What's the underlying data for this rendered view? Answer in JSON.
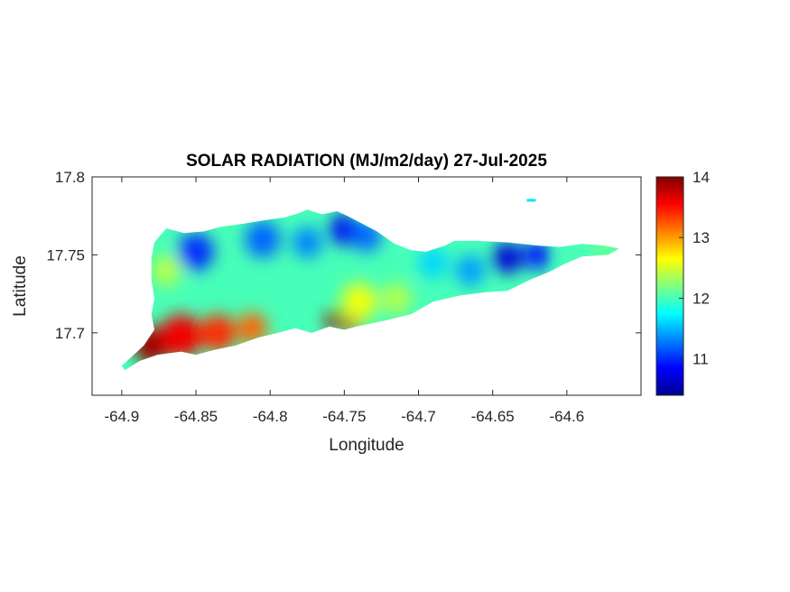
{
  "chart_data": {
    "type": "heatmap",
    "title": "SOLAR RADIATION (MJ/m2/day) 27-Jul-2025",
    "xlabel": "Longitude",
    "ylabel": "Latitude",
    "xlim": [
      -64.92,
      -64.55
    ],
    "ylim": [
      17.66,
      17.8
    ],
    "xticks": [
      -64.9,
      -64.85,
      -64.8,
      -64.75,
      -64.7,
      -64.65,
      -64.6
    ],
    "xtick_labels": [
      "-64.9",
      "-64.85",
      "-64.8",
      "-64.75",
      "-64.7",
      "-64.65",
      "-64.6"
    ],
    "yticks": [
      17.7,
      17.75,
      17.8
    ],
    "ytick_labels": [
      "17.7",
      "17.75",
      "17.8"
    ],
    "colormap": "jet",
    "clim": [
      10.4,
      14.0
    ],
    "colorbar_ticks": [
      11,
      12,
      13,
      14
    ],
    "colorbar_tick_labels": [
      "11",
      "12",
      "13",
      "14"
    ],
    "grid": false,
    "island_outline": [
      [
        -64.9,
        17.679
      ],
      [
        -64.885,
        17.692
      ],
      [
        -64.878,
        17.702
      ],
      [
        -64.88,
        17.712
      ],
      [
        -64.878,
        17.722
      ],
      [
        -64.88,
        17.734
      ],
      [
        -64.88,
        17.748
      ],
      [
        -64.878,
        17.758
      ],
      [
        -64.87,
        17.767
      ],
      [
        -64.858,
        17.764
      ],
      [
        -64.845,
        17.765
      ],
      [
        -64.833,
        17.768
      ],
      [
        -64.818,
        17.77
      ],
      [
        -64.805,
        17.772
      ],
      [
        -64.79,
        17.774
      ],
      [
        -64.78,
        17.777
      ],
      [
        -64.775,
        17.779
      ],
      [
        -64.765,
        17.776
      ],
      [
        -64.755,
        17.778
      ],
      [
        -64.748,
        17.775
      ],
      [
        -64.74,
        17.771
      ],
      [
        -64.728,
        17.765
      ],
      [
        -64.716,
        17.757
      ],
      [
        -64.705,
        17.753
      ],
      [
        -64.695,
        17.752
      ],
      [
        -64.682,
        17.756
      ],
      [
        -64.676,
        17.759
      ],
      [
        -64.66,
        17.759
      ],
      [
        -64.64,
        17.758
      ],
      [
        -64.62,
        17.756
      ],
      [
        -64.605,
        17.755
      ],
      [
        -64.59,
        17.757
      ],
      [
        -64.575,
        17.756
      ],
      [
        -64.565,
        17.754
      ],
      [
        -64.572,
        17.75
      ],
      [
        -64.59,
        17.749
      ],
      [
        -64.602,
        17.744
      ],
      [
        -64.612,
        17.739
      ],
      [
        -64.625,
        17.734
      ],
      [
        -64.64,
        17.727
      ],
      [
        -64.655,
        17.726
      ],
      [
        -64.672,
        17.724
      ],
      [
        -64.69,
        17.72
      ],
      [
        -64.705,
        17.712
      ],
      [
        -64.722,
        17.708
      ],
      [
        -64.742,
        17.704
      ],
      [
        -64.75,
        17.702
      ],
      [
        -64.76,
        17.704
      ],
      [
        -64.772,
        17.7
      ],
      [
        -64.783,
        17.703
      ],
      [
        -64.795,
        17.7
      ],
      [
        -64.808,
        17.697
      ],
      [
        -64.823,
        17.692
      ],
      [
        -64.838,
        17.689
      ],
      [
        -64.85,
        17.686
      ],
      [
        -64.86,
        17.688
      ],
      [
        -64.876,
        17.686
      ],
      [
        -64.888,
        17.682
      ],
      [
        -64.898,
        17.676
      ]
    ],
    "islet": [
      [
        -64.627,
        17.785
      ],
      [
        -64.621,
        17.785
      ]
    ],
    "value_regions": [
      {
        "lon": -64.88,
        "lat": 17.692,
        "value": 13.9,
        "radius_deg": 0.012
      },
      {
        "lon": -64.86,
        "lat": 17.698,
        "value": 13.6,
        "radius_deg": 0.014
      },
      {
        "lon": -64.835,
        "lat": 17.7,
        "value": 13.4,
        "radius_deg": 0.012
      },
      {
        "lon": -64.812,
        "lat": 17.703,
        "value": 13.2,
        "radius_deg": 0.01
      },
      {
        "lon": -64.757,
        "lat": 17.708,
        "value": 13.9,
        "radius_deg": 0.006
      },
      {
        "lon": -64.745,
        "lat": 17.705,
        "value": 13.6,
        "radius_deg": 0.005
      },
      {
        "lon": -64.87,
        "lat": 17.74,
        "value": 12.4,
        "radius_deg": 0.01
      },
      {
        "lon": -64.74,
        "lat": 17.72,
        "value": 12.6,
        "radius_deg": 0.012
      },
      {
        "lon": -64.715,
        "lat": 17.722,
        "value": 12.4,
        "radius_deg": 0.01
      },
      {
        "lon": -64.85,
        "lat": 17.752,
        "value": 11.0,
        "radius_deg": 0.012
      },
      {
        "lon": -64.805,
        "lat": 17.76,
        "value": 11.2,
        "radius_deg": 0.012
      },
      {
        "lon": -64.775,
        "lat": 17.758,
        "value": 11.3,
        "radius_deg": 0.01
      },
      {
        "lon": -64.75,
        "lat": 17.766,
        "value": 10.8,
        "radius_deg": 0.01
      },
      {
        "lon": -64.735,
        "lat": 17.762,
        "value": 11.2,
        "radius_deg": 0.01
      },
      {
        "lon": -64.69,
        "lat": 17.745,
        "value": 11.6,
        "radius_deg": 0.01
      },
      {
        "lon": -64.665,
        "lat": 17.74,
        "value": 11.4,
        "radius_deg": 0.01
      },
      {
        "lon": -64.64,
        "lat": 17.748,
        "value": 10.7,
        "radius_deg": 0.01
      },
      {
        "lon": -64.62,
        "lat": 17.75,
        "value": 10.9,
        "radius_deg": 0.009
      },
      {
        "lon": -64.595,
        "lat": 17.75,
        "value": 12.0,
        "radius_deg": 0.008
      },
      {
        "lon": -64.575,
        "lat": 17.754,
        "value": 12.2,
        "radius_deg": 0.006
      }
    ]
  }
}
